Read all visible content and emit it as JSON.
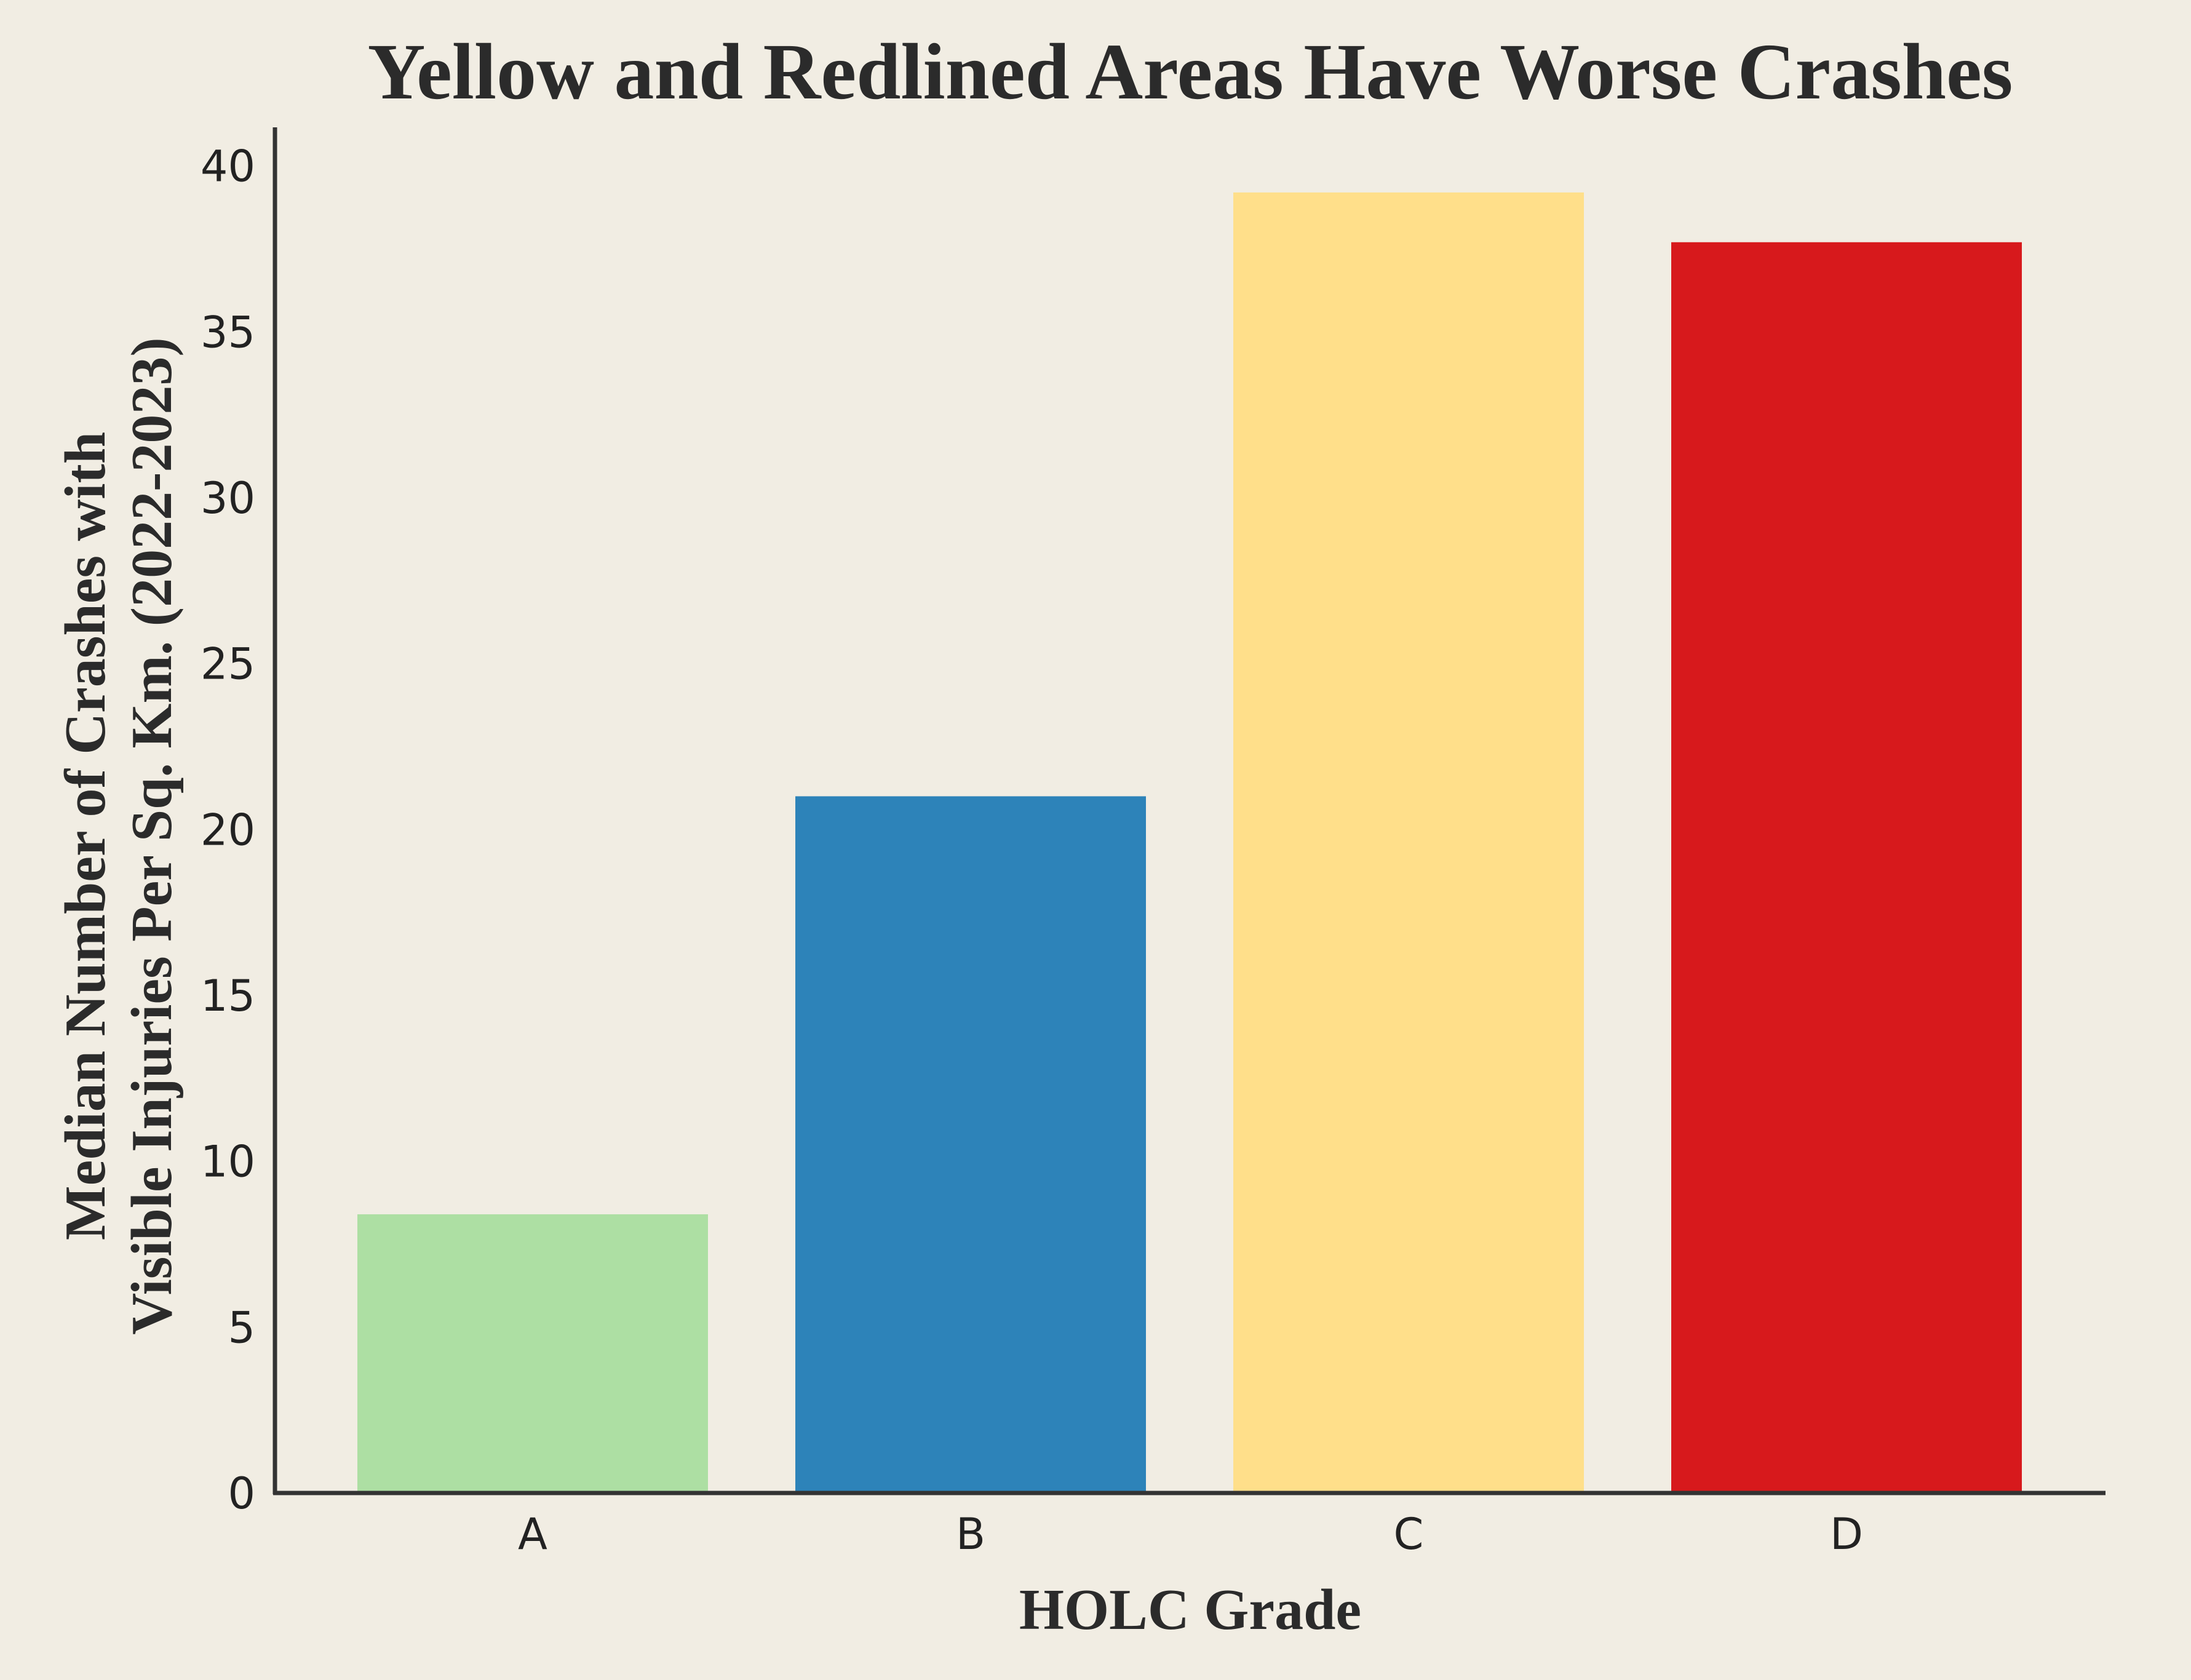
{
  "chart_data": {
    "type": "bar",
    "title": "Yellow and Redlined Areas Have Worse Crashes",
    "xlabel": "HOLC Grade",
    "ylabel_lines": [
      "Median Number of Crashes with",
      "Visible Injuries Per Sq. Km. (2022-2023)"
    ],
    "categories": [
      "A",
      "B",
      "C",
      "D"
    ],
    "values": [
      8.4,
      21.0,
      39.2,
      37.7
    ],
    "bar_colors": [
      "#addfa3",
      "#2d83b9",
      "#ffdf8a",
      "#d7191c"
    ],
    "ylim": [
      0,
      41.2
    ],
    "yticks": [
      "0",
      "5",
      "10",
      "15",
      "20",
      "25",
      "30",
      "35",
      "40"
    ],
    "grid": false,
    "legend": "none"
  },
  "colors": {
    "background": "#f1ede3",
    "axis": "#333333",
    "text": "#2b2b2b"
  }
}
